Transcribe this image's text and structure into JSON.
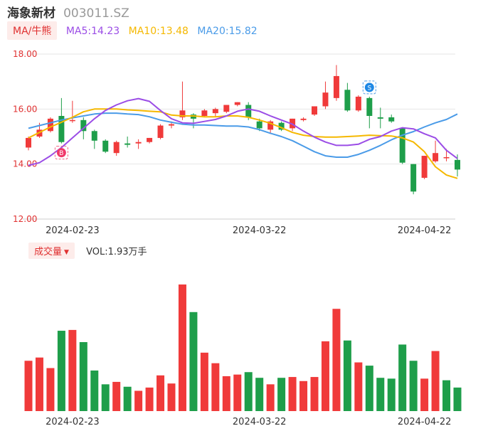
{
  "header": {
    "name": "海象新材",
    "code": "003011.SZ"
  },
  "ma_bar": {
    "button_label": "MA/牛熊",
    "ma5": "MA5:14.23",
    "ma10": "MA10:13.48",
    "ma20": "MA20:15.82"
  },
  "vol_bar": {
    "button_label": "成交量",
    "vol_text": "VOL:1.93万手"
  },
  "colors": {
    "up": "#f03a3a",
    "down": "#1e9e4a",
    "ma5": "#9b4de6",
    "ma10": "#f5b800",
    "ma20": "#4a9be8",
    "grid": "#e6e6e6",
    "ytick": "#e03131",
    "vol_label_bg": "#fdecea"
  },
  "icons": {
    "buy_marker": "buy-icon",
    "sell_marker": "sell-icon"
  },
  "chart_data": {
    "type": "candlestick",
    "y_ticks": [
      "18.00",
      "16.00",
      "14.00",
      "12.00"
    ],
    "ylim": [
      12,
      18
    ],
    "x_ticks": [
      {
        "label": "2024-02-23",
        "index": 4
      },
      {
        "label": "2024-03-22",
        "index": 21
      },
      {
        "label": "2024-04-22",
        "index": 36
      }
    ],
    "candles": [
      {
        "o": 14.6,
        "c": 14.95,
        "h": 15.0,
        "l": 14.5
      },
      {
        "o": 15.0,
        "c": 15.25,
        "h": 15.5,
        "l": 14.95
      },
      {
        "o": 15.2,
        "c": 15.65,
        "h": 15.7,
        "l": 15.15
      },
      {
        "o": 15.75,
        "c": 14.8,
        "h": 16.4,
        "l": 14.75
      },
      {
        "o": 15.6,
        "c": 15.6,
        "h": 16.3,
        "l": 15.5
      },
      {
        "o": 15.6,
        "c": 15.2,
        "h": 15.7,
        "l": 14.9
      },
      {
        "o": 15.2,
        "c": 14.85,
        "h": 15.25,
        "l": 14.55
      },
      {
        "o": 14.85,
        "c": 14.45,
        "h": 14.9,
        "l": 14.4
      },
      {
        "o": 14.4,
        "c": 14.8,
        "h": 14.85,
        "l": 14.3
      },
      {
        "o": 14.75,
        "c": 14.7,
        "h": 15.0,
        "l": 14.6
      },
      {
        "o": 14.75,
        "c": 14.8,
        "h": 14.9,
        "l": 14.55
      },
      {
        "o": 14.8,
        "c": 14.95,
        "h": 14.95,
        "l": 14.75
      },
      {
        "o": 14.95,
        "c": 15.4,
        "h": 15.45,
        "l": 14.9
      },
      {
        "o": 15.4,
        "c": 15.45,
        "h": 15.55,
        "l": 15.3
      },
      {
        "o": 15.7,
        "c": 15.95,
        "h": 17.0,
        "l": 15.6
      },
      {
        "o": 15.8,
        "c": 15.65,
        "h": 15.85,
        "l": 15.3
      },
      {
        "o": 15.75,
        "c": 15.95,
        "h": 16.0,
        "l": 15.7
      },
      {
        "o": 15.85,
        "c": 16.0,
        "h": 16.05,
        "l": 15.7
      },
      {
        "o": 15.9,
        "c": 16.15,
        "h": 16.15,
        "l": 15.85
      },
      {
        "o": 16.15,
        "c": 16.25,
        "h": 16.25,
        "l": 16.1
      },
      {
        "o": 16.15,
        "c": 15.7,
        "h": 16.25,
        "l": 15.6
      },
      {
        "o": 15.55,
        "c": 15.3,
        "h": 15.65,
        "l": 15.2
      },
      {
        "o": 15.25,
        "c": 15.55,
        "h": 15.6,
        "l": 15.1
      },
      {
        "o": 15.5,
        "c": 15.25,
        "h": 15.55,
        "l": 15.2
      },
      {
        "o": 15.3,
        "c": 15.65,
        "h": 15.65,
        "l": 15.2
      },
      {
        "o": 15.6,
        "c": 15.65,
        "h": 15.7,
        "l": 15.55
      },
      {
        "o": 15.8,
        "c": 16.1,
        "h": 16.1,
        "l": 15.75
      },
      {
        "o": 16.1,
        "c": 16.6,
        "h": 17.0,
        "l": 16.0
      },
      {
        "o": 16.4,
        "c": 17.2,
        "h": 17.6,
        "l": 16.3
      },
      {
        "o": 16.7,
        "c": 15.95,
        "h": 16.95,
        "l": 15.9
      },
      {
        "o": 15.95,
        "c": 16.45,
        "h": 16.5,
        "l": 15.9
      },
      {
        "o": 16.4,
        "c": 15.75,
        "h": 16.45,
        "l": 15.3
      },
      {
        "o": 15.7,
        "c": 15.65,
        "h": 16.05,
        "l": 15.3
      },
      {
        "o": 15.7,
        "c": 15.55,
        "h": 15.8,
        "l": 15.5
      },
      {
        "o": 15.3,
        "c": 14.05,
        "h": 15.3,
        "l": 14.0
      },
      {
        "o": 14.0,
        "c": 13.0,
        "h": 14.0,
        "l": 12.9
      },
      {
        "o": 13.5,
        "c": 14.3,
        "h": 14.3,
        "l": 13.45
      },
      {
        "o": 14.1,
        "c": 14.4,
        "h": 14.85,
        "l": 14.05
      },
      {
        "o": 14.25,
        "c": 14.25,
        "h": 14.55,
        "l": 14.1
      },
      {
        "o": 14.15,
        "c": 13.8,
        "h": 14.35,
        "l": 13.55
      }
    ],
    "ma5": [
      13.95,
      14.05,
      14.3,
      14.6,
      14.95,
      15.3,
      15.65,
      15.95,
      16.15,
      16.3,
      16.38,
      16.28,
      15.95,
      15.65,
      15.5,
      15.48,
      15.55,
      15.62,
      15.75,
      15.92,
      16.0,
      15.92,
      15.75,
      15.6,
      15.45,
      15.2,
      14.98,
      14.8,
      14.68,
      14.68,
      14.72,
      14.9,
      15.0,
      15.2,
      15.32,
      15.28,
      15.1,
      14.95,
      14.5,
      14.2
    ],
    "ma10": [
      14.95,
      15.15,
      15.35,
      15.52,
      15.7,
      15.9,
      16.0,
      16.0,
      16.0,
      15.97,
      15.95,
      15.92,
      15.9,
      15.78,
      15.75,
      15.75,
      15.72,
      15.72,
      15.75,
      15.75,
      15.7,
      15.6,
      15.48,
      15.32,
      15.15,
      15.05,
      15.0,
      14.98,
      14.98,
      15.0,
      15.02,
      15.05,
      15.03,
      15.02,
      14.95,
      14.8,
      14.45,
      13.9,
      13.6,
      13.48
    ],
    "ma20": [
      15.3,
      15.4,
      15.5,
      15.6,
      15.68,
      15.75,
      15.82,
      15.85,
      15.85,
      15.82,
      15.8,
      15.72,
      15.6,
      15.52,
      15.45,
      15.42,
      15.42,
      15.4,
      15.38,
      15.38,
      15.35,
      15.25,
      15.12,
      15.0,
      14.85,
      14.65,
      14.45,
      14.3,
      14.25,
      14.25,
      14.35,
      14.5,
      14.68,
      14.88,
      15.05,
      15.18,
      15.35,
      15.5,
      15.62,
      15.82
    ],
    "volume": {
      "colors": [
        "up",
        "up",
        "up",
        "down",
        "up",
        "down",
        "down",
        "down",
        "up",
        "down",
        "up",
        "up",
        "up",
        "up",
        "up",
        "down",
        "up",
        "up",
        "up",
        "up",
        "down",
        "down",
        "up",
        "down",
        "up",
        "up",
        "up",
        "up",
        "up",
        "down",
        "up",
        "down",
        "down",
        "down",
        "down",
        "down",
        "up",
        "up",
        "down",
        "down"
      ],
      "values": [
        0.62,
        0.66,
        0.53,
        0.99,
        1.0,
        0.85,
        0.5,
        0.33,
        0.36,
        0.3,
        0.25,
        0.29,
        0.44,
        0.34,
        1.56,
        1.22,
        0.72,
        0.59,
        0.43,
        0.45,
        0.48,
        0.41,
        0.33,
        0.41,
        0.42,
        0.37,
        0.42,
        0.86,
        1.26,
        0.87,
        0.6,
        0.56,
        0.41,
        0.4,
        0.82,
        0.62,
        0.4,
        0.74,
        0.38,
        0.29
      ]
    },
    "markers": [
      {
        "type": "buy",
        "index": 3,
        "label": "B"
      },
      {
        "type": "sell",
        "index": 31,
        "label": "S"
      }
    ]
  }
}
